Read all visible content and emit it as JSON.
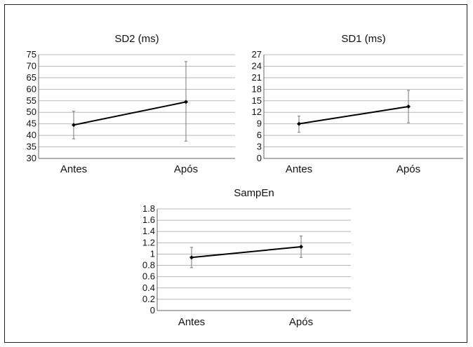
{
  "chart_data": [
    {
      "type": "line",
      "title": "SD2 (ms)",
      "categories": [
        "Antes",
        "Após"
      ],
      "values": [
        44.5,
        54.5
      ],
      "error_low": [
        38.5,
        37.5
      ],
      "error_high": [
        50.5,
        72
      ],
      "ylim": [
        30,
        75
      ],
      "yticks": [
        "30",
        "35",
        "40",
        "45",
        "50",
        "55",
        "60",
        "65",
        "70",
        "75"
      ],
      "grid": true
    },
    {
      "type": "line",
      "title": "SD1 (ms)",
      "categories": [
        "Antes",
        "Após"
      ],
      "values": [
        9,
        13.5
      ],
      "error_low": [
        6.8,
        9.3
      ],
      "error_high": [
        11,
        17.7
      ],
      "ylim": [
        0,
        27
      ],
      "yticks": [
        "0",
        "3",
        "6",
        "9",
        "12",
        "15",
        "18",
        "21",
        "24",
        "27"
      ],
      "grid": true
    },
    {
      "type": "line",
      "title": "SampEn",
      "categories": [
        "Antes",
        "Após"
      ],
      "values": [
        0.94,
        1.13
      ],
      "error_low": [
        0.76,
        0.94
      ],
      "error_high": [
        1.12,
        1.32
      ],
      "ylim": [
        0,
        1.8
      ],
      "yticks": [
        "0",
        "0.2",
        "0.4",
        "0.6",
        "0.8",
        "1",
        "1.2",
        "1.4",
        "1.6",
        "1.8"
      ],
      "grid": true
    }
  ]
}
